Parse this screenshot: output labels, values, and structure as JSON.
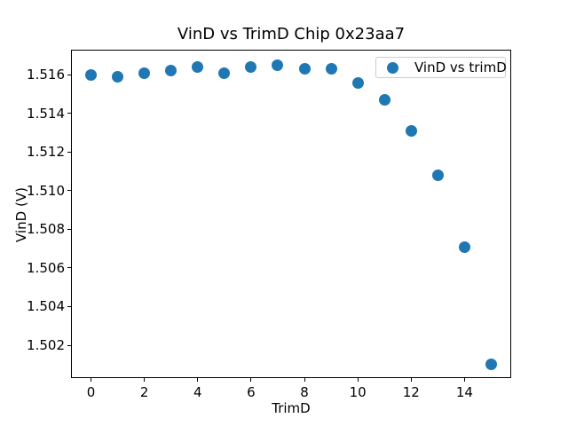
{
  "chart_data": {
    "type": "scatter",
    "title": "VinD vs TrimD Chip 0x23aa7",
    "xlabel": "TrimD",
    "ylabel": "VinD (V)",
    "x": [
      0,
      1,
      2,
      3,
      4,
      5,
      6,
      7,
      8,
      9,
      10,
      11,
      12,
      13,
      14,
      15
    ],
    "y": [
      1.516,
      1.5159,
      1.5161,
      1.5162,
      1.5164,
      1.5161,
      1.5164,
      1.5165,
      1.5163,
      1.5163,
      1.5156,
      1.5147,
      1.5131,
      1.5108,
      1.5071,
      1.501
    ],
    "series_name": "VinD vs trimD",
    "xlim": [
      -0.75,
      15.75
    ],
    "ylim": [
      1.5003,
      1.5173
    ],
    "xticks": [
      0,
      2,
      4,
      6,
      8,
      10,
      12,
      14
    ],
    "yticks": [
      1.502,
      1.504,
      1.506,
      1.508,
      1.51,
      1.512,
      1.514,
      1.516
    ],
    "ytick_decimals": 3,
    "grid": false,
    "marker_color": "#1f77b4",
    "legend": {
      "label": "VinD vs trimD",
      "position": "upper right",
      "border_color": "#cccccc"
    }
  }
}
